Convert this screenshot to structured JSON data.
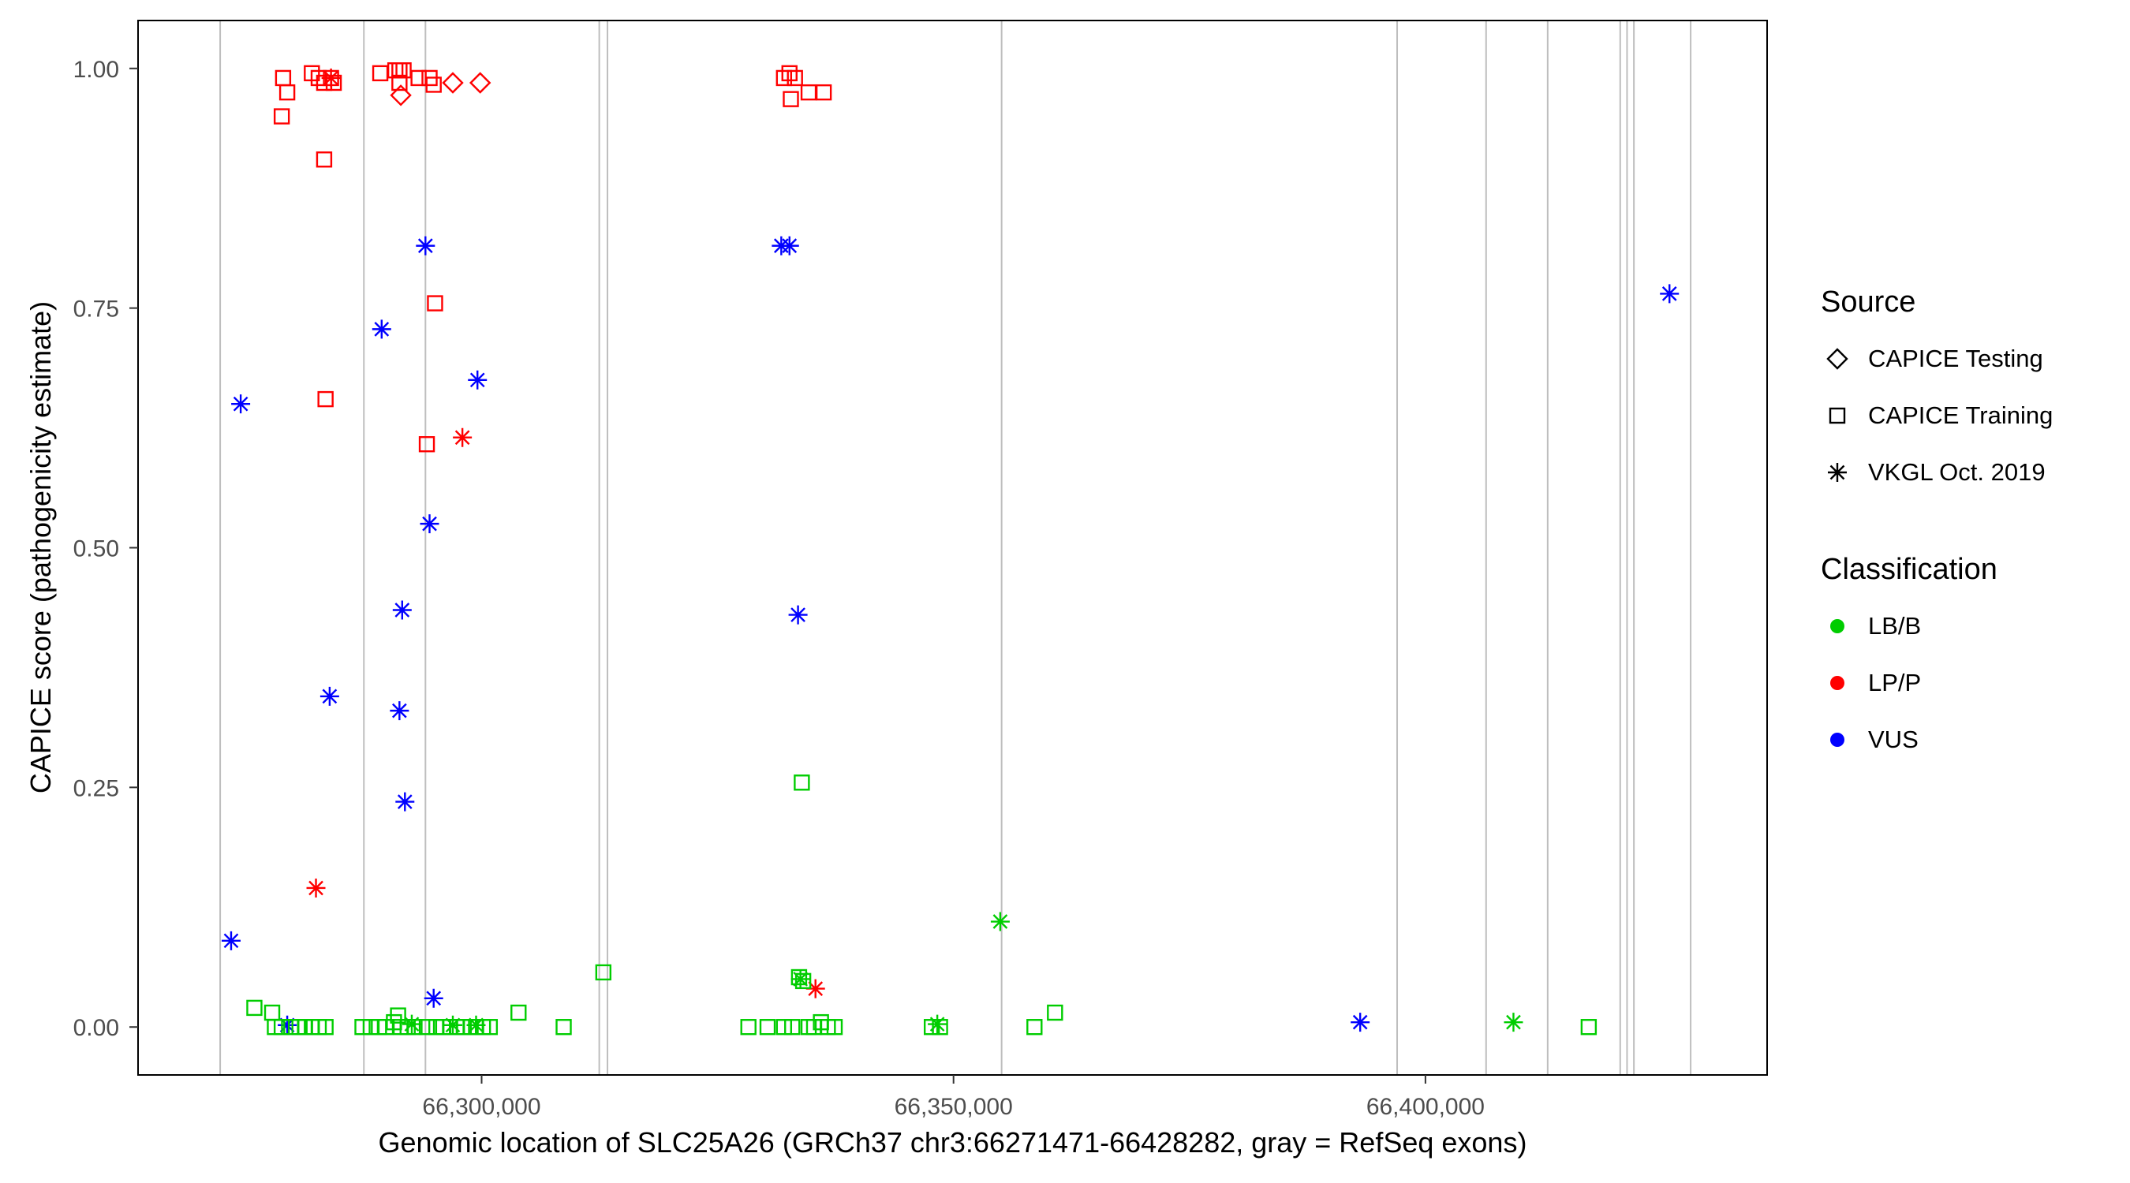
{
  "chart_data": {
    "type": "scatter",
    "title": "",
    "xlabel": "Genomic location of SLC25A26 (GRCh37 chr3:66271471-66428282, gray = RefSeq exons)",
    "ylabel": "CAPICE score (pathogenicity estimate)",
    "xlim": [
      66263600,
      66436200
    ],
    "ylim": [
      -0.05,
      1.05
    ],
    "grid": false,
    "x_ticks": [
      {
        "value": 66300000,
        "label": "66,300,000"
      },
      {
        "value": 66350000,
        "label": "66,350,000"
      },
      {
        "value": 66400000,
        "label": "66,400,000"
      }
    ],
    "y_ticks": [
      {
        "value": 0.0,
        "label": "0.00"
      },
      {
        "value": 0.25,
        "label": "0.25"
      },
      {
        "value": 0.5,
        "label": "0.50"
      },
      {
        "value": 0.75,
        "label": "0.75"
      },
      {
        "value": 1.0,
        "label": "1.00"
      }
    ],
    "exon_color": "#bebebe",
    "exon_positions": [
      66272300,
      66287525,
      66294050,
      66312465,
      66313335,
      66355095,
      66397000,
      66406425,
      66412950,
      66420635,
      66421360,
      66422085,
      66428100
    ],
    "colors": {
      "LB/B": "#00cd00",
      "LP/P": "#ff0000",
      "VUS": "#0000ff"
    },
    "shapes": {
      "testing": "diamond-open",
      "training": "square-open",
      "vkgl": "asterisk"
    },
    "legend": {
      "source": {
        "title": "Source",
        "items": [
          "CAPICE Testing",
          "CAPICE Training",
          "VKGL Oct. 2019"
        ]
      },
      "classification": {
        "title": "Classification",
        "items": [
          "LB/B",
          "LP/P",
          "VUS"
        ]
      }
    },
    "points_format": [
      "genomic_position",
      "capice_score",
      "source",
      "classification"
    ],
    "points": [
      [
        66278970,
        0.99,
        "training",
        "LP/P"
      ],
      [
        66279405,
        0.975,
        "training",
        "LP/P"
      ],
      [
        66278825,
        0.95,
        "training",
        "LP/P"
      ],
      [
        66282015,
        0.995,
        "training",
        "LP/P"
      ],
      [
        66282740,
        0.99,
        "training",
        "LP/P"
      ],
      [
        66283320,
        0.985,
        "training",
        "LP/P"
      ],
      [
        66284045,
        0.99,
        "training",
        "LP/P"
      ],
      [
        66284335,
        0.985,
        "training",
        "LP/P"
      ],
      [
        66283320,
        0.905,
        "training",
        "LP/P"
      ],
      [
        66283465,
        0.655,
        "training",
        "LP/P"
      ],
      [
        66289265,
        0.995,
        "training",
        "LP/P"
      ],
      [
        66290860,
        0.998,
        "training",
        "LP/P"
      ],
      [
        66291295,
        0.998,
        "training",
        "LP/P"
      ],
      [
        66291730,
        0.998,
        "training",
        "LP/P"
      ],
      [
        66291295,
        0.985,
        "training",
        "LP/P"
      ],
      [
        66293325,
        0.99,
        "training",
        "LP/P"
      ],
      [
        66294485,
        0.99,
        "training",
        "LP/P"
      ],
      [
        66294920,
        0.983,
        "training",
        "LP/P"
      ],
      [
        66295065,
        0.755,
        "training",
        "LP/P"
      ],
      [
        66294195,
        0.608,
        "training",
        "LP/P"
      ],
      [
        66332040,
        0.99,
        "training",
        "LP/P"
      ],
      [
        66332620,
        0.995,
        "training",
        "LP/P"
      ],
      [
        66333200,
        0.99,
        "training",
        "LP/P"
      ],
      [
        66332765,
        0.968,
        "training",
        "LP/P"
      ],
      [
        66334650,
        0.975,
        "training",
        "LP/P"
      ],
      [
        66336245,
        0.975,
        "training",
        "LP/P"
      ],
      [
        66291440,
        0.972,
        "testing",
        "LP/P"
      ],
      [
        66296950,
        0.985,
        "testing",
        "LP/P"
      ],
      [
        66299850,
        0.985,
        "testing",
        "LP/P"
      ],
      [
        66284045,
        0.99,
        "vkgl",
        "LP/P"
      ],
      [
        66282450,
        0.145,
        "vkgl",
        "LP/P"
      ],
      [
        66297965,
        0.615,
        "vkgl",
        "LP/P"
      ],
      [
        66335375,
        0.04,
        "vkgl",
        "LP/P"
      ],
      [
        66274475,
        0.65,
        "vkgl",
        "VUS"
      ],
      [
        66273460,
        0.09,
        "vkgl",
        "VUS"
      ],
      [
        66279405,
        0.002,
        "vkgl",
        "VUS"
      ],
      [
        66283900,
        0.345,
        "vkgl",
        "VUS"
      ],
      [
        66289410,
        0.728,
        "vkgl",
        "VUS"
      ],
      [
        66291295,
        0.33,
        "vkgl",
        "VUS"
      ],
      [
        66291585,
        0.435,
        "vkgl",
        "VUS"
      ],
      [
        66291875,
        0.235,
        "vkgl",
        "VUS"
      ],
      [
        66294050,
        0.815,
        "vkgl",
        "VUS"
      ],
      [
        66294485,
        0.525,
        "vkgl",
        "VUS"
      ],
      [
        66294920,
        0.03,
        "vkgl",
        "VUS"
      ],
      [
        66299560,
        0.675,
        "vkgl",
        "VUS"
      ],
      [
        66331750,
        0.815,
        "vkgl",
        "VUS"
      ],
      [
        66332620,
        0.815,
        "vkgl",
        "VUS"
      ],
      [
        66333525,
        0.43,
        "vkgl",
        "VUS"
      ],
      [
        66393085,
        0.005,
        "vkgl",
        "VUS"
      ],
      [
        66425855,
        0.765,
        "vkgl",
        "VUS"
      ],
      [
        66275925,
        0.02,
        "training",
        "LB/B"
      ],
      [
        66277810,
        0.015,
        "training",
        "LB/B"
      ],
      [
        66278100,
        0.0,
        "training",
        "LB/B"
      ],
      [
        66278825,
        0.0,
        "training",
        "LB/B"
      ],
      [
        66279840,
        0.0,
        "training",
        "LB/B"
      ],
      [
        66280710,
        0.0,
        "training",
        "LB/B"
      ],
      [
        66281290,
        0.0,
        "training",
        "LB/B"
      ],
      [
        66282015,
        0.0,
        "training",
        "LB/B"
      ],
      [
        66282740,
        0.0,
        "training",
        "LB/B"
      ],
      [
        66283465,
        0.0,
        "training",
        "LB/B"
      ],
      [
        66287380,
        0.0,
        "training",
        "LB/B"
      ],
      [
        66288250,
        0.0,
        "training",
        "LB/B"
      ],
      [
        66289120,
        0.0,
        "training",
        "LB/B"
      ],
      [
        66289845,
        0.0,
        "training",
        "LB/B"
      ],
      [
        66290715,
        0.005,
        "training",
        "LB/B"
      ],
      [
        66291150,
        0.012,
        "training",
        "LB/B"
      ],
      [
        66291440,
        0.0,
        "training",
        "LB/B"
      ],
      [
        66292165,
        0.0,
        "training",
        "LB/B"
      ],
      [
        66292890,
        0.0,
        "training",
        "LB/B"
      ],
      [
        66294195,
        0.0,
        "training",
        "LB/B"
      ],
      [
        66295210,
        0.0,
        "training",
        "LB/B"
      ],
      [
        66295935,
        0.0,
        "training",
        "LB/B"
      ],
      [
        66296660,
        0.0,
        "training",
        "LB/B"
      ],
      [
        66297385,
        0.0,
        "training",
        "LB/B"
      ],
      [
        66298110,
        0.0,
        "training",
        "LB/B"
      ],
      [
        66298835,
        0.0,
        "training",
        "LB/B"
      ],
      [
        66299415,
        0.0,
        "training",
        "LB/B"
      ],
      [
        66300140,
        0.0,
        "training",
        "LB/B"
      ],
      [
        66300865,
        0.0,
        "training",
        "LB/B"
      ],
      [
        66303910,
        0.015,
        "training",
        "LB/B"
      ],
      [
        66308695,
        0.0,
        "training",
        "LB/B"
      ],
      [
        66312900,
        0.057,
        "training",
        "LB/B"
      ],
      [
        66328270,
        0.0,
        "training",
        "LB/B"
      ],
      [
        66330300,
        0.0,
        "training",
        "LB/B"
      ],
      [
        66332040,
        0.0,
        "training",
        "LB/B"
      ],
      [
        66332910,
        0.0,
        "training",
        "LB/B"
      ],
      [
        66333635,
        0.052,
        "training",
        "LB/B"
      ],
      [
        66334070,
        0.048,
        "training",
        "LB/B"
      ],
      [
        66333925,
        0.255,
        "training",
        "LB/B"
      ],
      [
        66334650,
        0.0,
        "training",
        "LB/B"
      ],
      [
        66335230,
        0.0,
        "training",
        "LB/B"
      ],
      [
        66335955,
        0.005,
        "training",
        "LB/B"
      ],
      [
        66336680,
        0.0,
        "training",
        "LB/B"
      ],
      [
        66337405,
        0.0,
        "training",
        "LB/B"
      ],
      [
        66347700,
        0.0,
        "training",
        "LB/B"
      ],
      [
        66348570,
        0.0,
        "training",
        "LB/B"
      ],
      [
        66358575,
        0.0,
        "training",
        "LB/B"
      ],
      [
        66360750,
        0.015,
        "training",
        "LB/B"
      ],
      [
        66417300,
        0.0,
        "training",
        "LB/B"
      ],
      [
        66292600,
        0.003,
        "vkgl",
        "LB/B"
      ],
      [
        66296950,
        0.002,
        "vkgl",
        "LB/B"
      ],
      [
        66299415,
        0.002,
        "vkgl",
        "LB/B"
      ],
      [
        66333780,
        0.05,
        "vkgl",
        "LB/B"
      ],
      [
        66348280,
        0.003,
        "vkgl",
        "LB/B"
      ],
      [
        66354950,
        0.11,
        "vkgl",
        "LB/B"
      ],
      [
        66409325,
        0.005,
        "vkgl",
        "LB/B"
      ]
    ]
  }
}
